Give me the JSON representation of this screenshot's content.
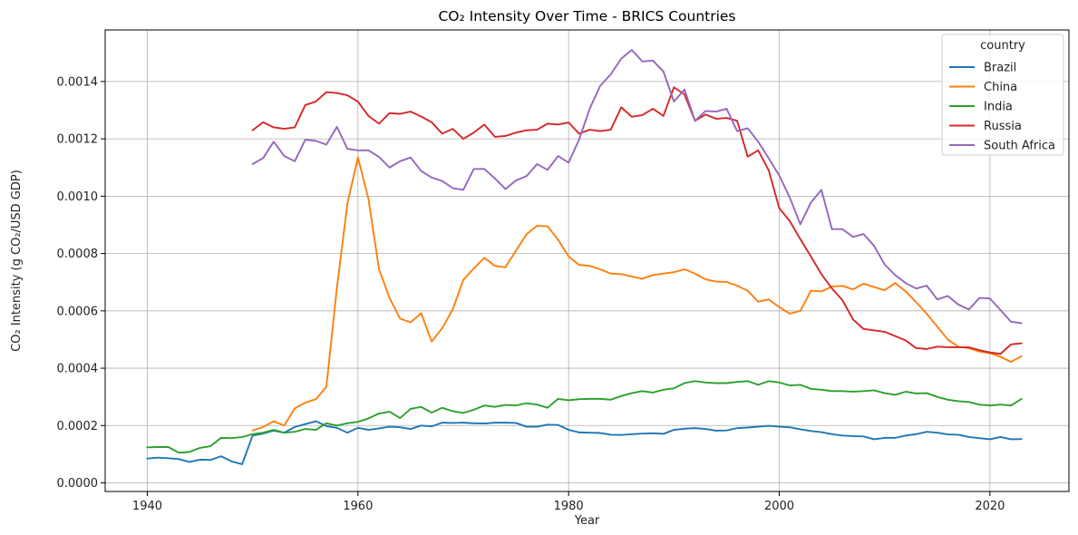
{
  "chart_data": {
    "type": "line",
    "title": "CO₂ Intensity Over Time - BRICS Countries",
    "xlabel": "Year",
    "ylabel": "CO₂ Intensity (g CO₂/USD GDP)",
    "xlim": [
      1936,
      2027.5
    ],
    "ylim": [
      -3e-05,
      0.00158
    ],
    "xticks": [
      1940,
      1960,
      1980,
      2000,
      2020
    ],
    "xtick_labels": [
      "1940",
      "1960",
      "1980",
      "2000",
      "2020"
    ],
    "yticks": [
      0,
      0.0002,
      0.0004,
      0.0006,
      0.0008,
      0.001,
      0.0012,
      0.0014
    ],
    "ytick_labels": [
      "0.0000",
      "0.0002",
      "0.0004",
      "0.0006",
      "0.0008",
      "0.0010",
      "0.0012",
      "0.0014"
    ],
    "grid": true,
    "legend": {
      "title": "country",
      "placement": "top-right"
    },
    "series": [
      {
        "name": "Brazil",
        "color": "#1f77b4",
        "x": [
          1940,
          1941,
          1942,
          1943,
          1944,
          1945,
          1946,
          1947,
          1948,
          1949,
          1950,
          1951,
          1952,
          1953,
          1954,
          1955,
          1956,
          1957,
          1958,
          1959,
          1960,
          1961,
          1962,
          1963,
          1964,
          1965,
          1966,
          1967,
          1968,
          1969,
          1970,
          1971,
          1972,
          1973,
          1974,
          1975,
          1976,
          1977,
          1978,
          1979,
          1980,
          1981,
          1982,
          1983,
          1984,
          1985,
          1986,
          1987,
          1988,
          1989,
          1990,
          1991,
          1992,
          1993,
          1994,
          1995,
          1996,
          1997,
          1998,
          1999,
          2000,
          2001,
          2002,
          2003,
          2004,
          2005,
          2006,
          2007,
          2008,
          2009,
          2010,
          2011,
          2012,
          2013,
          2014,
          2015,
          2016,
          2017,
          2018,
          2019,
          2020,
          2021,
          2022,
          2023
        ],
        "values": [
          8.5e-05,
          8.8e-05,
          8.6e-05,
          8.3e-05,
          7.3e-05,
          8.1e-05,
          8e-05,
          9.3e-05,
          7.5e-05,
          6.5e-05,
          0.000165,
          0.000172,
          0.000182,
          0.000175,
          0.000195,
          0.000205,
          0.000215,
          0.000198,
          0.000192,
          0.000175,
          0.000192,
          0.000185,
          0.00019,
          0.000196,
          0.000194,
          0.000188,
          0.0002,
          0.000197,
          0.00021,
          0.000209,
          0.00021,
          0.000208,
          0.000207,
          0.00021,
          0.00021,
          0.000209,
          0.000196,
          0.000196,
          0.000203,
          0.000202,
          0.000185,
          0.000176,
          0.000175,
          0.000174,
          0.000168,
          0.000167,
          0.00017,
          0.000172,
          0.000173,
          0.000171,
          0.000185,
          0.000189,
          0.000191,
          0.000188,
          0.000182,
          0.000183,
          0.000191,
          0.000193,
          0.000196,
          0.000199,
          0.000196,
          0.000194,
          0.000187,
          0.000181,
          0.000177,
          0.00017,
          0.000165,
          0.000163,
          0.000162,
          0.000152,
          0.000157,
          0.000157,
          0.000165,
          0.00017,
          0.000178,
          0.000175,
          0.000169,
          0.000168,
          0.00016,
          0.000156,
          0.000152,
          0.00016,
          0.000152,
          0.000153
        ]
      },
      {
        "name": "China",
        "color": "#ff7f0e",
        "x": [
          1950,
          1951,
          1952,
          1953,
          1954,
          1955,
          1956,
          1957,
          1958,
          1959,
          1960,
          1961,
          1962,
          1963,
          1964,
          1965,
          1966,
          1967,
          1968,
          1969,
          1970,
          1971,
          1972,
          1973,
          1974,
          1975,
          1976,
          1977,
          1978,
          1979,
          1980,
          1981,
          1982,
          1983,
          1984,
          1985,
          1986,
          1987,
          1988,
          1989,
          1990,
          1991,
          1992,
          1993,
          1994,
          1995,
          1996,
          1997,
          1998,
          1999,
          2000,
          2001,
          2002,
          2003,
          2004,
          2005,
          2006,
          2007,
          2008,
          2009,
          2010,
          2011,
          2012,
          2013,
          2014,
          2015,
          2016,
          2017,
          2018,
          2019,
          2020,
          2021,
          2022,
          2023
        ],
        "values": [
          0.000183,
          0.000195,
          0.000215,
          0.0002,
          0.00026,
          0.00028,
          0.000292,
          0.000335,
          0.00068,
          0.000975,
          0.001135,
          0.00099,
          0.000745,
          0.000645,
          0.000573,
          0.00056,
          0.000592,
          0.000493,
          0.00054,
          0.000605,
          0.000708,
          0.000748,
          0.000785,
          0.000757,
          0.000752,
          0.00081,
          0.000867,
          0.000897,
          0.000895,
          0.000848,
          0.00079,
          0.00076,
          0.000757,
          0.000745,
          0.00073,
          0.000728,
          0.00072,
          0.000712,
          0.000725,
          0.00073,
          0.000735,
          0.000745,
          0.00073,
          0.00071,
          0.000702,
          0.000701,
          0.000688,
          0.00067,
          0.000632,
          0.00064,
          0.000613,
          0.00059,
          0.0006,
          0.00067,
          0.000668,
          0.000685,
          0.000687,
          0.000675,
          0.000695,
          0.000683,
          0.000672,
          0.000697,
          0.000668,
          0.00063,
          0.00059,
          0.000545,
          0.0005,
          0.000475,
          0.00047,
          0.000458,
          0.000452,
          0.00044,
          0.000422,
          0.000442
        ]
      },
      {
        "name": "India",
        "color": "#2ca02c",
        "x": [
          1940,
          1941,
          1942,
          1943,
          1944,
          1945,
          1946,
          1947,
          1948,
          1949,
          1950,
          1951,
          1952,
          1953,
          1954,
          1955,
          1956,
          1957,
          1958,
          1959,
          1960,
          1961,
          1962,
          1963,
          1964,
          1965,
          1966,
          1967,
          1968,
          1969,
          1970,
          1971,
          1972,
          1973,
          1974,
          1975,
          1976,
          1977,
          1978,
          1979,
          1980,
          1981,
          1982,
          1983,
          1984,
          1985,
          1986,
          1987,
          1988,
          1989,
          1990,
          1991,
          1992,
          1993,
          1994,
          1995,
          1996,
          1997,
          1998,
          1999,
          2000,
          2001,
          2002,
          2003,
          2004,
          2005,
          2006,
          2007,
          2008,
          2009,
          2010,
          2011,
          2012,
          2013,
          2014,
          2015,
          2016,
          2017,
          2018,
          2019,
          2020,
          2021,
          2022,
          2023
        ],
        "values": [
          0.000124,
          0.000125,
          0.000125,
          0.000105,
          0.000108,
          0.000122,
          0.000128,
          0.000157,
          0.000156,
          0.00016,
          0.00017,
          0.000175,
          0.000185,
          0.000175,
          0.000178,
          0.000188,
          0.000185,
          0.000208,
          0.0002,
          0.000208,
          0.000213,
          0.000225,
          0.000242,
          0.000248,
          0.000226,
          0.000258,
          0.000265,
          0.000245,
          0.000262,
          0.00025,
          0.000244,
          0.000255,
          0.00027,
          0.000265,
          0.000272,
          0.00027,
          0.000278,
          0.000273,
          0.000262,
          0.000293,
          0.000288,
          0.000292,
          0.000293,
          0.000293,
          0.00029,
          0.000303,
          0.000313,
          0.00032,
          0.000315,
          0.000325,
          0.00033,
          0.000348,
          0.000355,
          0.00035,
          0.000348,
          0.000348,
          0.000352,
          0.000355,
          0.000342,
          0.000355,
          0.00035,
          0.00034,
          0.000342,
          0.000328,
          0.000325,
          0.00032,
          0.00032,
          0.000318,
          0.00032,
          0.000323,
          0.000313,
          0.000307,
          0.000318,
          0.000312,
          0.000313,
          0.0003,
          0.00029,
          0.000285,
          0.000282,
          0.000273,
          0.00027,
          0.000273,
          0.00027,
          0.000293
        ]
      },
      {
        "name": "Russia",
        "color": "#d62728",
        "x": [
          1950,
          1951,
          1952,
          1953,
          1954,
          1955,
          1956,
          1957,
          1958,
          1959,
          1960,
          1961,
          1962,
          1963,
          1964,
          1965,
          1966,
          1967,
          1968,
          1969,
          1970,
          1971,
          1972,
          1973,
          1974,
          1975,
          1976,
          1977,
          1978,
          1979,
          1980,
          1981,
          1982,
          1983,
          1984,
          1985,
          1986,
          1987,
          1988,
          1989,
          1990,
          1991,
          1992,
          1993,
          1994,
          1995,
          1996,
          1997,
          1998,
          1999,
          2000,
          2001,
          2002,
          2003,
          2004,
          2005,
          2006,
          2007,
          2008,
          2009,
          2010,
          2011,
          2012,
          2013,
          2014,
          2015,
          2016,
          2017,
          2018,
          2019,
          2020,
          2021,
          2022,
          2023
        ],
        "values": [
          0.00123,
          0.001258,
          0.00124,
          0.001235,
          0.00124,
          0.001318,
          0.00133,
          0.001363,
          0.00136,
          0.001352,
          0.00133,
          0.00128,
          0.001253,
          0.00129,
          0.001287,
          0.001295,
          0.001278,
          0.001258,
          0.001218,
          0.001235,
          0.0012,
          0.001222,
          0.00125,
          0.001207,
          0.00121,
          0.001222,
          0.00123,
          0.001232,
          0.001253,
          0.00125,
          0.001257,
          0.001218,
          0.001232,
          0.001227,
          0.001232,
          0.00131,
          0.001277,
          0.001283,
          0.001305,
          0.00128,
          0.00138,
          0.001355,
          0.001263,
          0.001285,
          0.00127,
          0.001273,
          0.001263,
          0.001138,
          0.00116,
          0.00109,
          0.000958,
          0.000913,
          0.00085,
          0.00079,
          0.000728,
          0.000678,
          0.000637,
          0.00057,
          0.000537,
          0.000532,
          0.000527,
          0.000512,
          0.000497,
          0.00047,
          0.000467,
          0.000475,
          0.000473,
          0.000473,
          0.000473,
          0.000463,
          0.000455,
          0.00045,
          0.000483,
          0.000487
        ]
      },
      {
        "name": "South Africa",
        "color": "#9467bd",
        "x": [
          1950,
          1951,
          1952,
          1953,
          1954,
          1955,
          1956,
          1957,
          1958,
          1959,
          1960,
          1961,
          1962,
          1963,
          1964,
          1965,
          1966,
          1967,
          1968,
          1969,
          1970,
          1971,
          1972,
          1973,
          1974,
          1975,
          1976,
          1977,
          1978,
          1979,
          1980,
          1981,
          1982,
          1983,
          1984,
          1985,
          1986,
          1987,
          1988,
          1989,
          1990,
          1991,
          1992,
          1993,
          1994,
          1995,
          1996,
          1997,
          1998,
          1999,
          2000,
          2001,
          2002,
          2003,
          2004,
          2005,
          2006,
          2007,
          2008,
          2009,
          2010,
          2011,
          2012,
          2013,
          2014,
          2015,
          2016,
          2017,
          2018,
          2019,
          2020,
          2021,
          2022,
          2023
        ],
        "values": [
          0.001112,
          0.001133,
          0.00119,
          0.00114,
          0.001122,
          0.001197,
          0.001193,
          0.00118,
          0.001242,
          0.001165,
          0.00116,
          0.00116,
          0.001137,
          0.0011,
          0.001122,
          0.001135,
          0.001088,
          0.001065,
          0.001053,
          0.001028,
          0.001022,
          0.001095,
          0.001095,
          0.001062,
          0.001025,
          0.001055,
          0.00107,
          0.001112,
          0.001092,
          0.00114,
          0.001117,
          0.001198,
          0.001305,
          0.001385,
          0.001425,
          0.00148,
          0.00151,
          0.00147,
          0.001473,
          0.001435,
          0.00133,
          0.001372,
          0.001263,
          0.001297,
          0.001295,
          0.001305,
          0.001227,
          0.001237,
          0.00119,
          0.001132,
          0.001072,
          0.000995,
          0.000902,
          0.000978,
          0.001022,
          0.000885,
          0.000885,
          0.000858,
          0.000868,
          0.000827,
          0.000762,
          0.000725,
          0.000697,
          0.000678,
          0.000688,
          0.00064,
          0.000652,
          0.000622,
          0.000605,
          0.000645,
          0.000643,
          0.000603,
          0.000562,
          0.000557
        ]
      }
    ]
  }
}
